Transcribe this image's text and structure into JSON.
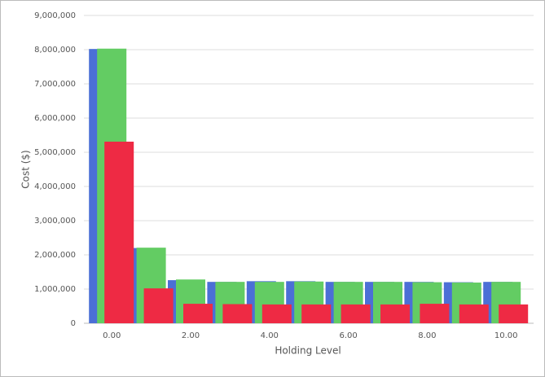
{
  "chart_data": {
    "type": "bar",
    "x_label": "Holding Level",
    "y_label": "Cost ($)",
    "categories": [
      "0.00",
      null,
      "2.00",
      null,
      "4.00",
      null,
      "6.00",
      null,
      "8.00",
      null,
      "10.00"
    ],
    "series": [
      {
        "color": "#4b6fd6",
        "values": [
          8020000,
          2200000,
          1260000,
          1210000,
          1230000,
          1230000,
          1210000,
          1210000,
          1210000,
          1200000,
          1210000
        ]
      },
      {
        "color": "#63cc63",
        "values": [
          8030000,
          2210000,
          1280000,
          1210000,
          1210000,
          1220000,
          1210000,
          1210000,
          1200000,
          1190000,
          1210000
        ]
      },
      {
        "color": "#ee2a44",
        "values": [
          5310000,
          1020000,
          570000,
          560000,
          550000,
          550000,
          550000,
          550000,
          570000,
          550000,
          550000
        ]
      }
    ],
    "ylim": [
      0,
      9000000
    ],
    "yticks": [
      0,
      {
        "value": 1000000,
        "label": "1,000,000"
      },
      {
        "value": 2000000,
        "label": "2,000,000"
      },
      {
        "value": 3000000,
        "label": "3,000,000"
      },
      {
        "value": 4000000,
        "label": "4,000,000"
      },
      {
        "value": 5000000,
        "label": "5,000,000"
      },
      {
        "value": 6000000,
        "label": "6,000,000"
      },
      {
        "value": 7000000,
        "label": "7,000,000"
      },
      {
        "value": 8000000,
        "label": "8,000,000"
      },
      {
        "value": 9000000,
        "label": "9,000,000"
      }
    ],
    "grid": true
  }
}
